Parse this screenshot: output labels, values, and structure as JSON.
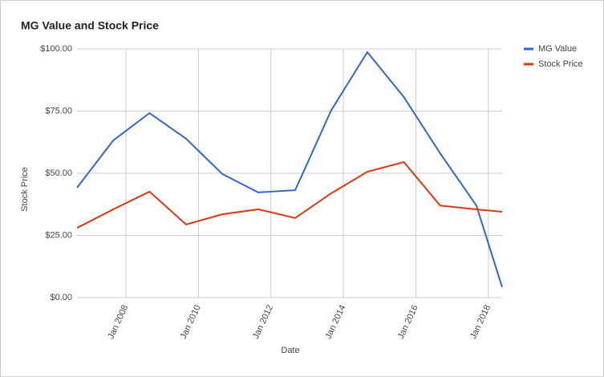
{
  "chart_data": {
    "type": "line",
    "title": "MG Value and Stock Price",
    "x_label": "Date",
    "y_label": "Stock Price",
    "x": [
      2006.65,
      2007.65,
      2008.65,
      2009.66,
      2010.66,
      2011.65,
      2012.67,
      2013.66,
      2014.66,
      2015.67,
      2016.67,
      2017.67,
      2018.38
    ],
    "series": [
      {
        "name": "MG Value",
        "color": "#3366cc",
        "values": [
          44.2,
          63.2,
          74.2,
          63.9,
          49.7,
          42.3,
          43.2,
          75.2,
          98.7,
          80.6,
          58,
          37,
          4.2
        ]
      },
      {
        "name": "Stock Price",
        "color": "#dc3912",
        "values": [
          28,
          35.5,
          42.6,
          29.4,
          33.5,
          35.5,
          32,
          41.9,
          50.6,
          54.5,
          37,
          35.5,
          34.5
        ]
      }
    ],
    "xlim": [
      2006.65,
      2018.38
    ],
    "xticks": [
      {
        "value": 2008,
        "label": "Jan 2008"
      },
      {
        "value": 2010,
        "label": "Jan 2010"
      },
      {
        "value": 2012,
        "label": "Jan 2012"
      },
      {
        "value": 2014,
        "label": "Jan 2014"
      },
      {
        "value": 2016,
        "label": "Jan 2016"
      },
      {
        "value": 2018,
        "label": "Jan 2018"
      }
    ],
    "ylim": [
      0,
      100
    ],
    "yticks": [
      {
        "value": 0,
        "label": "$0.00"
      },
      {
        "value": 25,
        "label": "$25.00"
      },
      {
        "value": 50,
        "label": "$50.00"
      },
      {
        "value": 75,
        "label": "$75.00"
      },
      {
        "value": 100,
        "label": "$100.00"
      }
    ],
    "grid": true,
    "legend": "right"
  }
}
